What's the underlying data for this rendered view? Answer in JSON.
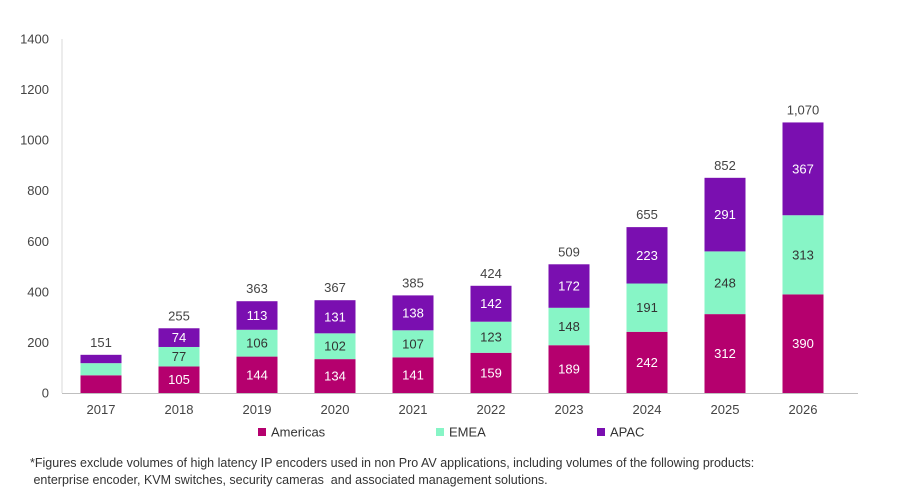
{
  "chart_data": {
    "type": "bar",
    "stacked": true,
    "categories": [
      "2017",
      "2018",
      "2019",
      "2020",
      "2021",
      "2022",
      "2023",
      "2024",
      "2025",
      "2026"
    ],
    "series": [
      {
        "name": "Americas",
        "color": "#b5006e",
        "label_color": "#ffffff",
        "values": [
          70,
          105,
          144,
          134,
          141,
          159,
          189,
          242,
          312,
          390
        ],
        "data_labels": [
          "",
          "105",
          "144",
          "134",
          "141",
          "159",
          "189",
          "242",
          "312",
          "390"
        ]
      },
      {
        "name": "EMEA",
        "color": "#87f5c6",
        "label_color": "#333333",
        "values": [
          48,
          77,
          106,
          102,
          107,
          123,
          148,
          191,
          248,
          313
        ],
        "data_labels": [
          "",
          "77",
          "106",
          "102",
          "107",
          "123",
          "148",
          "191",
          "248",
          "313"
        ]
      },
      {
        "name": "APAC",
        "color": "#7a0fb0",
        "label_color": "#ffffff",
        "values": [
          33,
          74,
          113,
          131,
          138,
          142,
          172,
          223,
          291,
          367
        ],
        "data_labels": [
          "",
          "74",
          "113",
          "131",
          "138",
          "142",
          "172",
          "223",
          "291",
          "367"
        ]
      }
    ],
    "totals": [
      "151",
      "255",
      "363",
      "367",
      "385",
      "424",
      "509",
      "655",
      "852",
      "1,070"
    ],
    "ylim": [
      0,
      1400
    ],
    "yticks": [
      "0",
      "200",
      "400",
      "600",
      "800",
      "1000",
      "1200",
      "1400"
    ],
    "grid": false,
    "legend_position": "bottom",
    "title": "",
    "xlabel": "",
    "ylabel": ""
  },
  "footnote": {
    "line1": "*Figures exclude volumes of high latency IP encoders used in non Pro AV applications, including volumes of the following products:",
    "line2": " enterprise encoder, KVM switches, security cameras  and associated management solutions."
  }
}
